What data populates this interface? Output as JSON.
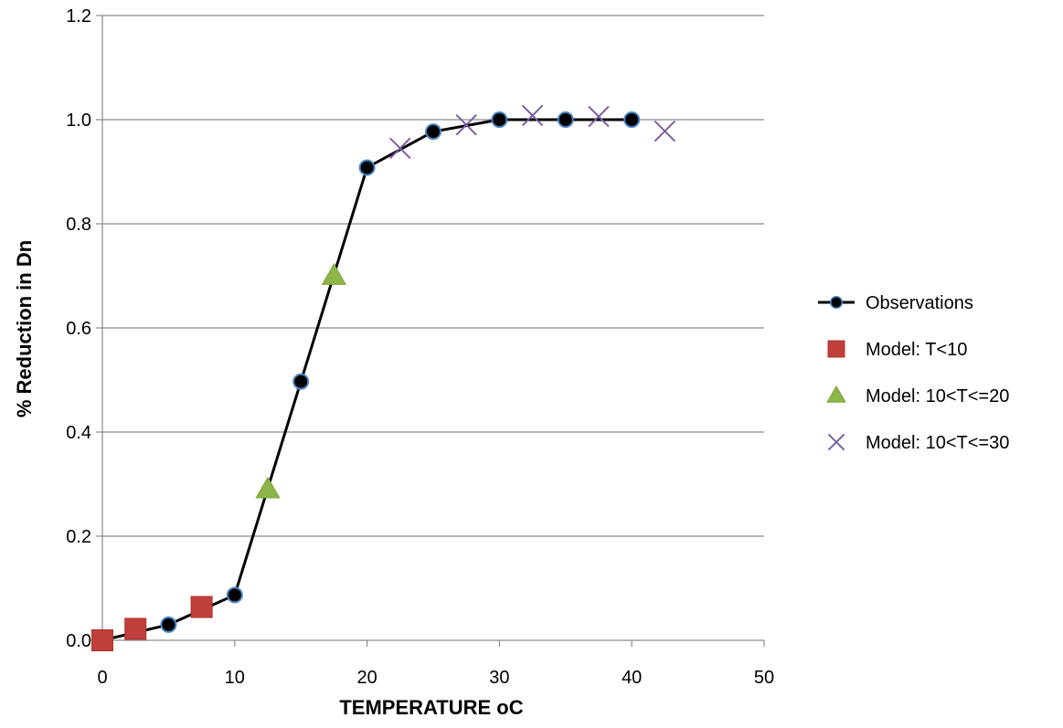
{
  "chart_data": {
    "type": "scatter",
    "title": "",
    "xlabel": "TEMPERATURE oC",
    "ylabel": "% Reduction in Dn",
    "xlim": [
      0,
      50
    ],
    "ylim": [
      0,
      1.2
    ],
    "xticks": [
      0,
      10,
      20,
      30,
      40,
      50
    ],
    "yticks": [
      0.0,
      0.2,
      0.4,
      0.6,
      0.8,
      1.0,
      1.2
    ],
    "xtick_labels": [
      "0",
      "10",
      "20",
      "30",
      "40",
      "50"
    ],
    "ytick_labels": [
      "0.0",
      "0.2",
      "0.4",
      "0.6",
      "0.8",
      "1.0",
      "1.2"
    ],
    "grid": "horizontal",
    "legend_position": "right",
    "series": [
      {
        "name": "Observations",
        "style": "line-marker",
        "marker": "circle",
        "color": "#000000",
        "marker_edge": "#4a86c5",
        "x": [
          0,
          5,
          10,
          15,
          20,
          25,
          30,
          35,
          40
        ],
        "y": [
          0.0,
          0.03,
          0.087,
          0.497,
          0.908,
          0.977,
          1.0,
          1.0,
          1.0
        ]
      },
      {
        "name": "Model: T<10",
        "style": "marker",
        "marker": "square",
        "color": "#c0403c",
        "x": [
          0,
          2.5,
          7.5
        ],
        "y": [
          0.0,
          0.022,
          0.064
        ]
      },
      {
        "name": "Model: 10<T<=20",
        "style": "marker",
        "marker": "triangle",
        "color": "#8db547",
        "x": [
          12.5,
          17.5
        ],
        "y": [
          0.29,
          0.7
        ]
      },
      {
        "name": "Model: 10<T<=30",
        "style": "marker",
        "marker": "x",
        "color": "#7b5fa3",
        "x": [
          22.5,
          27.5,
          32.5,
          37.5,
          42.5
        ],
        "y": [
          0.945,
          0.99,
          1.008,
          1.006,
          0.978
        ]
      }
    ]
  }
}
